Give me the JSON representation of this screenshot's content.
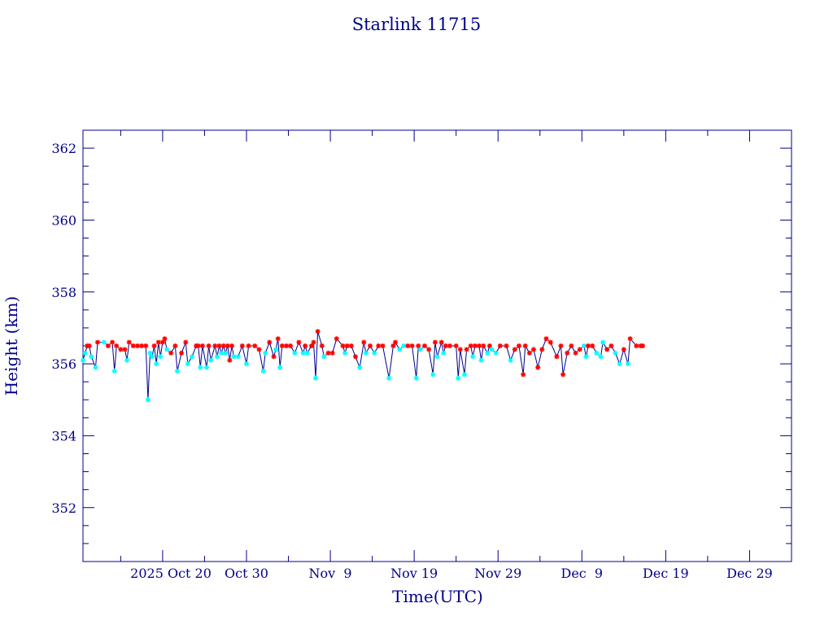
{
  "chart_data": {
    "type": "line",
    "title": "Starlink 11715",
    "xlabel": "Time(UTC)",
    "ylabel": "Height (km)",
    "x_tick_labels": [
      "2025 Oct 20",
      "Oct 30",
      "Nov  9",
      "Nov 19",
      "Nov 29",
      "Dec  9",
      "Dec 19",
      "Dec 29"
    ],
    "x_tick_dates": [
      "2025-10-20",
      "2025-10-30",
      "2025-11-09",
      "2025-11-19",
      "2025-11-29",
      "2025-12-09",
      "2025-12-19",
      "2025-12-29"
    ],
    "xlim": [
      "2025-10-10T12:00",
      "2026-01-03T00:00"
    ],
    "y_tick_labels": [
      "352",
      "354",
      "356",
      "358",
      "360",
      "362"
    ],
    "y_ticks": [
      352,
      354,
      356,
      358,
      360,
      362
    ],
    "ylim": [
      350.5,
      362.5
    ],
    "grid": false,
    "colors": {
      "axes": "#00008b",
      "line": "#00008b",
      "marker_red": "#ff0000",
      "marker_cyan": "#00ffff"
    },
    "series": [
      {
        "marker_colors": [
          "cyan",
          "red"
        ],
        "points": [
          [
            "2025-10-10T12:00",
            356.1,
            "c"
          ],
          [
            "2025-10-10T18:00",
            356.3,
            "c"
          ],
          [
            "2025-10-11T00:00",
            356.5,
            "r"
          ],
          [
            "2025-10-11T06:00",
            356.5,
            "r"
          ],
          [
            "2025-10-11T12:00",
            356.2,
            "c"
          ],
          [
            "2025-10-12T00:00",
            355.9,
            "c"
          ],
          [
            "2025-10-12T06:00",
            356.6,
            "r"
          ],
          [
            "2025-10-13T00:00",
            356.6,
            "c"
          ],
          [
            "2025-10-13T12:00",
            356.5,
            "r"
          ],
          [
            "2025-10-14T00:00",
            356.6,
            "r"
          ],
          [
            "2025-10-14T06:00",
            355.8,
            "c"
          ],
          [
            "2025-10-14T12:00",
            356.5,
            "r"
          ],
          [
            "2025-10-15T00:00",
            356.4,
            "r"
          ],
          [
            "2025-10-15T12:00",
            356.4,
            "r"
          ],
          [
            "2025-10-15T18:00",
            356.1,
            "c"
          ],
          [
            "2025-10-16T00:00",
            356.6,
            "r"
          ],
          [
            "2025-10-16T12:00",
            356.5,
            "r"
          ],
          [
            "2025-10-17T00:00",
            356.5,
            "r"
          ],
          [
            "2025-10-17T12:00",
            356.5,
            "r"
          ],
          [
            "2025-10-18T00:00",
            356.5,
            "r"
          ],
          [
            "2025-10-18T06:00",
            355.0,
            "c"
          ],
          [
            "2025-10-18T12:00",
            356.3,
            "c"
          ],
          [
            "2025-10-18T18:00",
            356.2,
            "c"
          ],
          [
            "2025-10-19T00:00",
            356.5,
            "r"
          ],
          [
            "2025-10-19T06:00",
            356.0,
            "c"
          ],
          [
            "2025-10-19T12:00",
            356.6,
            "r"
          ],
          [
            "2025-10-19T18:00",
            356.2,
            "c"
          ],
          [
            "2025-10-20T00:00",
            356.6,
            "r"
          ],
          [
            "2025-10-20T06:00",
            356.7,
            "r"
          ],
          [
            "2025-10-20T12:00",
            356.4,
            "c"
          ],
          [
            "2025-10-21T00:00",
            356.3,
            "r"
          ],
          [
            "2025-10-21T12:00",
            356.5,
            "r"
          ],
          [
            "2025-10-21T18:00",
            355.8,
            "c"
          ],
          [
            "2025-10-22T06:00",
            356.3,
            "r"
          ],
          [
            "2025-10-22T18:00",
            356.6,
            "r"
          ],
          [
            "2025-10-23T00:00",
            356.0,
            "c"
          ],
          [
            "2025-10-23T12:00",
            356.2,
            "c"
          ],
          [
            "2025-10-24T00:00",
            356.5,
            "r"
          ],
          [
            "2025-10-24T06:00",
            356.5,
            "r"
          ],
          [
            "2025-10-24T12:00",
            355.9,
            "c"
          ],
          [
            "2025-10-24T18:00",
            356.5,
            "r"
          ],
          [
            "2025-10-25T06:00",
            355.9,
            "c"
          ],
          [
            "2025-10-25T12:00",
            356.5,
            "r"
          ],
          [
            "2025-10-25T18:00",
            356.1,
            "c"
          ],
          [
            "2025-10-26T06:00",
            356.5,
            "r"
          ],
          [
            "2025-10-26T12:00",
            356.2,
            "c"
          ],
          [
            "2025-10-26T18:00",
            356.5,
            "r"
          ],
          [
            "2025-10-27T00:00",
            356.3,
            "c"
          ],
          [
            "2025-10-27T06:00",
            356.5,
            "r"
          ],
          [
            "2025-10-27T12:00",
            356.3,
            "c"
          ],
          [
            "2025-10-27T18:00",
            356.5,
            "r"
          ],
          [
            "2025-10-28T00:00",
            356.1,
            "r"
          ],
          [
            "2025-10-28T06:00",
            356.5,
            "r"
          ],
          [
            "2025-10-28T12:00",
            356.2,
            "c"
          ],
          [
            "2025-10-29T00:00",
            356.2,
            "c"
          ],
          [
            "2025-10-29T12:00",
            356.5,
            "r"
          ],
          [
            "2025-10-30T00:00",
            356.0,
            "c"
          ],
          [
            "2025-10-30T06:00",
            356.5,
            "r"
          ],
          [
            "2025-10-31T00:00",
            356.5,
            "r"
          ],
          [
            "2025-10-31T12:00",
            356.4,
            "r"
          ],
          [
            "2025-11-01T00:00",
            355.8,
            "c"
          ],
          [
            "2025-11-01T06:00",
            356.3,
            "c"
          ],
          [
            "2025-11-01T18:00",
            356.6,
            "r"
          ],
          [
            "2025-11-02T06:00",
            356.2,
            "r"
          ],
          [
            "2025-11-02T12:00",
            356.4,
            "c"
          ],
          [
            "2025-11-02T18:00",
            356.7,
            "r"
          ],
          [
            "2025-11-03T00:00",
            355.9,
            "c"
          ],
          [
            "2025-11-03T06:00",
            356.5,
            "r"
          ],
          [
            "2025-11-03T18:00",
            356.5,
            "r"
          ],
          [
            "2025-11-04T06:00",
            356.5,
            "r"
          ],
          [
            "2025-11-04T18:00",
            356.3,
            "c"
          ],
          [
            "2025-11-05T06:00",
            356.6,
            "r"
          ],
          [
            "2025-11-05T18:00",
            356.3,
            "c"
          ],
          [
            "2025-11-06T00:00",
            356.5,
            "r"
          ],
          [
            "2025-11-06T06:00",
            356.3,
            "c"
          ],
          [
            "2025-11-06T18:00",
            356.5,
            "r"
          ],
          [
            "2025-11-07T00:00",
            356.6,
            "r"
          ],
          [
            "2025-11-07T06:00",
            355.6,
            "c"
          ],
          [
            "2025-11-07T12:00",
            356.9,
            "r"
          ],
          [
            "2025-11-08T00:00",
            356.5,
            "r"
          ],
          [
            "2025-11-08T06:00",
            356.2,
            "c"
          ],
          [
            "2025-11-08T18:00",
            356.3,
            "r"
          ],
          [
            "2025-11-09T06:00",
            356.3,
            "r"
          ],
          [
            "2025-11-09T18:00",
            356.7,
            "r"
          ],
          [
            "2025-11-10T12:00",
            356.5,
            "r"
          ],
          [
            "2025-11-10T18:00",
            356.3,
            "c"
          ],
          [
            "2025-11-11T00:00",
            356.5,
            "r"
          ],
          [
            "2025-11-11T12:00",
            356.5,
            "r"
          ],
          [
            "2025-11-12T00:00",
            356.2,
            "r"
          ],
          [
            "2025-11-12T12:00",
            355.9,
            "c"
          ],
          [
            "2025-11-13T00:00",
            356.6,
            "r"
          ],
          [
            "2025-11-13T06:00",
            356.3,
            "c"
          ],
          [
            "2025-11-13T18:00",
            356.5,
            "r"
          ],
          [
            "2025-11-14T06:00",
            356.3,
            "c"
          ],
          [
            "2025-11-14T18:00",
            356.5,
            "r"
          ],
          [
            "2025-11-15T06:00",
            356.5,
            "r"
          ],
          [
            "2025-11-16T00:00",
            355.6,
            "c"
          ],
          [
            "2025-11-16T12:00",
            356.5,
            "r"
          ],
          [
            "2025-11-16T18:00",
            356.6,
            "r"
          ],
          [
            "2025-11-17T06:00",
            356.4,
            "c"
          ],
          [
            "2025-11-17T18:00",
            356.5,
            "c"
          ],
          [
            "2025-11-18T06:00",
            356.5,
            "r"
          ],
          [
            "2025-11-18T18:00",
            356.5,
            "r"
          ],
          [
            "2025-11-19T06:00",
            355.6,
            "c"
          ],
          [
            "2025-11-19T12:00",
            356.5,
            "r"
          ],
          [
            "2025-11-19T18:00",
            356.4,
            "c"
          ],
          [
            "2025-11-20T06:00",
            356.5,
            "r"
          ],
          [
            "2025-11-20T18:00",
            356.4,
            "r"
          ],
          [
            "2025-11-21T06:00",
            355.7,
            "c"
          ],
          [
            "2025-11-21T12:00",
            356.6,
            "r"
          ],
          [
            "2025-11-21T18:00",
            356.2,
            "c"
          ],
          [
            "2025-11-22T06:00",
            356.6,
            "r"
          ],
          [
            "2025-11-22T12:00",
            356.3,
            "c"
          ],
          [
            "2025-11-22T18:00",
            356.5,
            "r"
          ],
          [
            "2025-11-23T06:00",
            356.5,
            "r"
          ],
          [
            "2025-11-24T00:00",
            356.5,
            "r"
          ],
          [
            "2025-11-24T06:00",
            355.6,
            "c"
          ],
          [
            "2025-11-24T12:00",
            356.4,
            "r"
          ],
          [
            "2025-11-25T00:00",
            355.7,
            "c"
          ],
          [
            "2025-11-25T06:00",
            356.4,
            "r"
          ],
          [
            "2025-11-25T18:00",
            356.5,
            "r"
          ],
          [
            "2025-11-26T00:00",
            356.2,
            "c"
          ],
          [
            "2025-11-26T06:00",
            356.5,
            "r"
          ],
          [
            "2025-11-26T18:00",
            356.5,
            "r"
          ],
          [
            "2025-11-27T00:00",
            356.1,
            "c"
          ],
          [
            "2025-11-27T06:00",
            356.5,
            "r"
          ],
          [
            "2025-11-27T18:00",
            356.3,
            "c"
          ],
          [
            "2025-11-28T00:00",
            356.5,
            "r"
          ],
          [
            "2025-11-28T06:00",
            356.4,
            "c"
          ],
          [
            "2025-11-28T18:00",
            356.3,
            "c"
          ],
          [
            "2025-11-29T06:00",
            356.5,
            "r"
          ],
          [
            "2025-11-30T00:00",
            356.5,
            "r"
          ],
          [
            "2025-11-30T12:00",
            356.1,
            "c"
          ],
          [
            "2025-12-01T00:00",
            356.4,
            "r"
          ],
          [
            "2025-12-01T12:00",
            356.5,
            "r"
          ],
          [
            "2025-12-02T00:00",
            355.7,
            "r"
          ],
          [
            "2025-12-02T06:00",
            356.5,
            "r"
          ],
          [
            "2025-12-02T18:00",
            356.3,
            "r"
          ],
          [
            "2025-12-03T06:00",
            356.4,
            "r"
          ],
          [
            "2025-12-03T18:00",
            355.9,
            "r"
          ],
          [
            "2025-12-04T06:00",
            356.4,
            "r"
          ],
          [
            "2025-12-04T18:00",
            356.7,
            "r"
          ],
          [
            "2025-12-05T06:00",
            356.6,
            "r"
          ],
          [
            "2025-12-06T00:00",
            356.2,
            "r"
          ],
          [
            "2025-12-06T12:00",
            356.5,
            "r"
          ],
          [
            "2025-12-06T18:00",
            355.7,
            "r"
          ],
          [
            "2025-12-07T06:00",
            356.3,
            "r"
          ],
          [
            "2025-12-07T18:00",
            356.5,
            "r"
          ],
          [
            "2025-12-08T06:00",
            356.3,
            "r"
          ],
          [
            "2025-12-08T18:00",
            356.4,
            "r"
          ],
          [
            "2025-12-09T06:00",
            356.5,
            "c"
          ],
          [
            "2025-12-09T12:00",
            356.2,
            "c"
          ],
          [
            "2025-12-09T18:00",
            356.5,
            "r"
          ],
          [
            "2025-12-10T06:00",
            356.5,
            "r"
          ],
          [
            "2025-12-10T18:00",
            356.3,
            "c"
          ],
          [
            "2025-12-11T06:00",
            356.2,
            "c"
          ],
          [
            "2025-12-11T12:00",
            356.6,
            "c"
          ],
          [
            "2025-12-12T00:00",
            356.4,
            "r"
          ],
          [
            "2025-12-12T12:00",
            356.5,
            "r"
          ],
          [
            "2025-12-13T00:00",
            356.3,
            "c"
          ],
          [
            "2025-12-13T12:00",
            356.0,
            "c"
          ],
          [
            "2025-12-14T00:00",
            356.4,
            "r"
          ],
          [
            "2025-12-14T12:00",
            356.0,
            "c"
          ],
          [
            "2025-12-14T18:00",
            356.7,
            "r"
          ],
          [
            "2025-12-15T12:00",
            356.5,
            "r"
          ],
          [
            "2025-12-16T00:00",
            356.5,
            "r"
          ],
          [
            "2025-12-16T06:00",
            356.5,
            "r"
          ]
        ]
      }
    ]
  }
}
